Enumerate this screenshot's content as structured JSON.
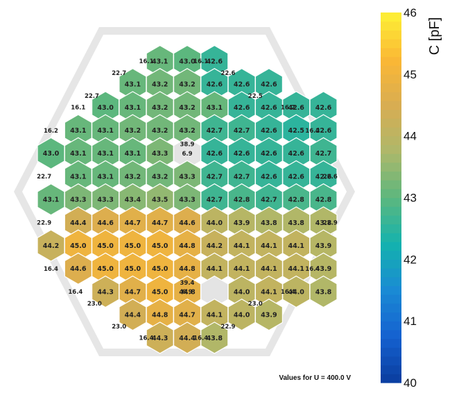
{
  "chart_data": {
    "type": "heatmap",
    "layout": "hexagonal",
    "colorbar": {
      "title": "C [pF]",
      "min": 40,
      "max": 46,
      "ticks": [
        "40",
        "41",
        "42",
        "43",
        "44",
        "45",
        "46"
      ],
      "colors": [
        "#0a3d9e",
        "#1561d0",
        "#1a8ad4",
        "#14b2ae",
        "#5cb77e",
        "#aeb86a",
        "#d8ad52",
        "#fbb835",
        "#fdf235"
      ]
    },
    "footnote": "Values for U = 400.0 V",
    "rows": [
      {
        "start": 4,
        "cells": [
          43.1,
          43.0,
          42.6
        ]
      },
      {
        "start": 3,
        "cells": [
          43.1,
          43.2,
          43.2,
          42.6,
          42.6,
          42.6
        ]
      },
      {
        "start": 2,
        "cells": [
          43.0,
          43.1,
          43.2,
          43.2,
          43.1,
          42.6,
          42.6,
          42.6,
          42.6
        ]
      },
      {
        "start": 1,
        "cells": [
          43.1,
          43.1,
          43.2,
          43.2,
          43.2,
          42.7,
          42.7,
          42.6,
          42.5,
          42.6
        ]
      },
      {
        "start": 0,
        "cells": [
          43.0,
          43.1,
          43.1,
          43.1,
          43.3,
          null,
          42.6,
          42.6,
          42.6,
          42.6,
          42.7
        ]
      },
      {
        "start": 1,
        "cells": [
          43.1,
          43.1,
          43.2,
          43.2,
          43.3,
          42.7,
          42.7,
          42.6,
          42.6,
          42.6
        ]
      },
      {
        "start": 0,
        "cells": [
          43.1,
          43.3,
          43.3,
          43.4,
          43.5,
          43.3,
          42.7,
          42.8,
          42.7,
          42.8,
          42.8
        ]
      },
      {
        "start": 1,
        "cells": [
          44.4,
          44.6,
          44.7,
          44.7,
          44.6,
          44.0,
          43.9,
          43.8,
          43.8,
          43.8
        ]
      },
      {
        "start": 0,
        "cells": [
          44.2,
          45.0,
          45.0,
          45.0,
          45.0,
          44.8,
          44.2,
          44.1,
          44.1,
          44.1,
          43.9
        ]
      },
      {
        "start": 1,
        "cells": [
          44.6,
          45.0,
          45.0,
          45.0,
          44.8,
          44.1,
          44.1,
          44.1,
          44.1,
          43.9
        ]
      },
      {
        "start": 2,
        "cells": [
          44.3,
          44.7,
          45.0,
          44.8,
          null,
          44.0,
          44.1,
          44.0,
          43.8
        ]
      },
      {
        "start": 3,
        "cells": [
          44.4,
          44.8,
          44.7,
          44.1,
          44.0,
          43.9
        ]
      },
      {
        "start": 4,
        "cells": [
          44.3,
          44.4,
          43.8
        ]
      }
    ],
    "edge_labels": [
      {
        "text": "16.1",
        "row": 0,
        "slot": 3.5
      },
      {
        "text": "16.1",
        "row": 0,
        "slot": 5.5
      },
      {
        "text": "22.7",
        "row": 0.5,
        "slot": 2.5
      },
      {
        "text": "22.6",
        "row": 0.5,
        "slot": 6.5
      },
      {
        "text": "22.7",
        "row": 1.5,
        "slot": 1.5
      },
      {
        "text": "22.5",
        "row": 1.5,
        "slot": 7.5
      },
      {
        "text": "16.1",
        "row": 2,
        "slot": 1
      },
      {
        "text": "16.2",
        "row": 2,
        "slot": 8.7
      },
      {
        "text": "16.2",
        "row": 3,
        "slot": 0.0
      },
      {
        "text": "16.2",
        "row": 3,
        "slot": 9.6
      },
      {
        "text": "38.9",
        "row": 3.6,
        "slot": 5.0
      },
      {
        "text": "6.9",
        "row": 4,
        "slot": 5.0
      },
      {
        "text": "22.7",
        "row": 5,
        "slot": -0.25
      },
      {
        "text": "22.6",
        "row": 5,
        "slot": 10.25
      },
      {
        "text": "22.9",
        "row": 7,
        "slot": -0.25
      },
      {
        "text": "22.9",
        "row": 7,
        "slot": 10.25
      },
      {
        "text": "16.4",
        "row": 9,
        "slot": 0.0
      },
      {
        "text": "16.4",
        "row": 9,
        "slot": 9.6
      },
      {
        "text": "39.4",
        "row": 9.6,
        "slot": 5.0
      },
      {
        "text": "6.9",
        "row": 10,
        "slot": 5.0
      },
      {
        "text": "16.4",
        "row": 10,
        "slot": 0.9
      },
      {
        "text": "16.4",
        "row": 10,
        "slot": 8.7
      },
      {
        "text": "23.0",
        "row": 10.5,
        "slot": 1.6
      },
      {
        "text": "23.0",
        "row": 10.5,
        "slot": 7.5
      },
      {
        "text": "23.0",
        "row": 11.5,
        "slot": 2.5
      },
      {
        "text": "22.9",
        "row": 11.5,
        "slot": 6.5
      },
      {
        "text": "16.4",
        "row": 12,
        "slot": 3.5
      },
      {
        "text": "16.4",
        "row": 12,
        "slot": 5.5
      }
    ]
  }
}
